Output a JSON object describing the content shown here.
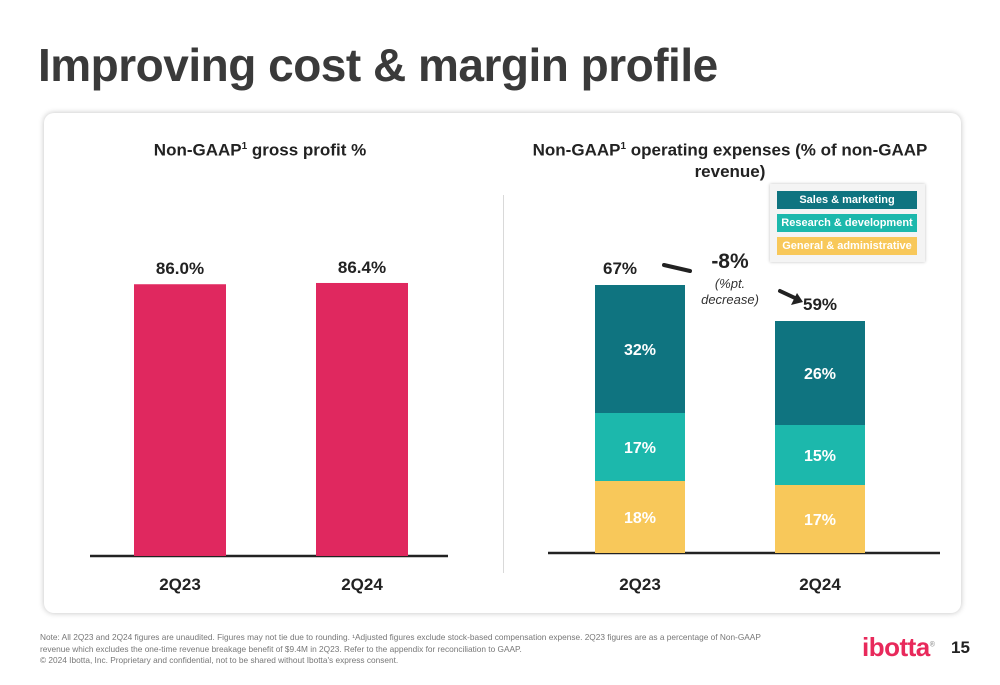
{
  "slide": {
    "title": "Improving cost & margin profile",
    "page_number": "15",
    "logo_text": "ibotta",
    "logo_mark": "®",
    "footnote_line1": "Note: All 2Q23 and 2Q24 figures are unaudited. Figures may not tie due to rounding. ¹Adjusted figures exclude stock-based compensation expense. 2Q23 figures are as a percentage of Non-GAAP",
    "footnote_line2": "revenue which excludes the one-time revenue breakage benefit of $9.4M in 2Q23. Refer to the appendix for reconciliation to GAAP.",
    "footnote_line3": "© 2024 Ibotta, Inc. Proprietary and confidential, not to be shared without Ibotta's express consent."
  },
  "chart_data": [
    {
      "type": "bar",
      "title_main": "Non-GAAP",
      "title_sup": "1",
      "title_rest": " gross profit %",
      "categories": [
        "2Q23",
        "2Q24"
      ],
      "values": [
        86.0,
        86.4
      ],
      "value_labels": [
        "86.0%",
        "86.4%"
      ],
      "ylim": [
        0,
        100
      ],
      "color": "#e0285f",
      "grid": false
    },
    {
      "type": "bar",
      "stacked": true,
      "title_main": "Non-GAAP",
      "title_sup": "1",
      "title_rest": " operating expenses (% of non-GAAP",
      "title_line2": "revenue)",
      "categories": [
        "2Q23",
        "2Q24"
      ],
      "series": [
        {
          "name": "General & administrative",
          "values": [
            18,
            17
          ],
          "labels": [
            "18%",
            "17%"
          ],
          "color": "#f8c85a"
        },
        {
          "name": "Research & development",
          "values": [
            17,
            15
          ],
          "labels": [
            "17%",
            "15%"
          ],
          "color": "#1cb8ac"
        },
        {
          "name": "Sales & marketing",
          "values": [
            32,
            26
          ],
          "labels": [
            "32%",
            "26%"
          ],
          "color": "#0f7480"
        }
      ],
      "legend_order": [
        "Sales & marketing",
        "Research & development",
        "General & administrative"
      ],
      "legend_position": "top-right",
      "totals": [
        67,
        59
      ],
      "total_labels": [
        "67%",
        "59%"
      ],
      "change_label": "-8%",
      "change_sublabel_line1": "(%pt.",
      "change_sublabel_line2": "decrease)",
      "grid": false
    }
  ]
}
